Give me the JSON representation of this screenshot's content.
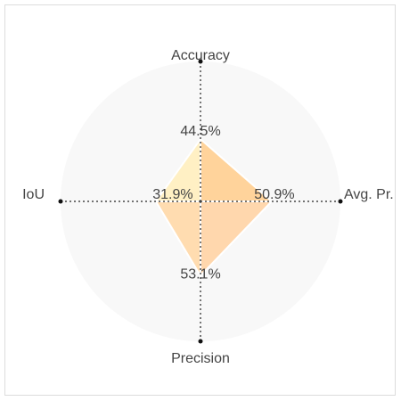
{
  "chart_data": {
    "type": "radar",
    "title": "",
    "axes": [
      "Accuracy",
      "Avg. Pr.",
      "Precision",
      "IoU"
    ],
    "values": [
      44.5,
      50.9,
      53.1,
      31.9
    ],
    "value_labels": [
      "44.5%",
      "50.9%",
      "53.1%",
      "31.9%"
    ],
    "unit": "%",
    "range": [
      0,
      100
    ],
    "segment_colors": [
      "#ffd39b",
      "#ffd7ad",
      "#ffdcb0",
      "#fff0c4"
    ],
    "background_color": "#f8f8f8",
    "grid": false
  }
}
